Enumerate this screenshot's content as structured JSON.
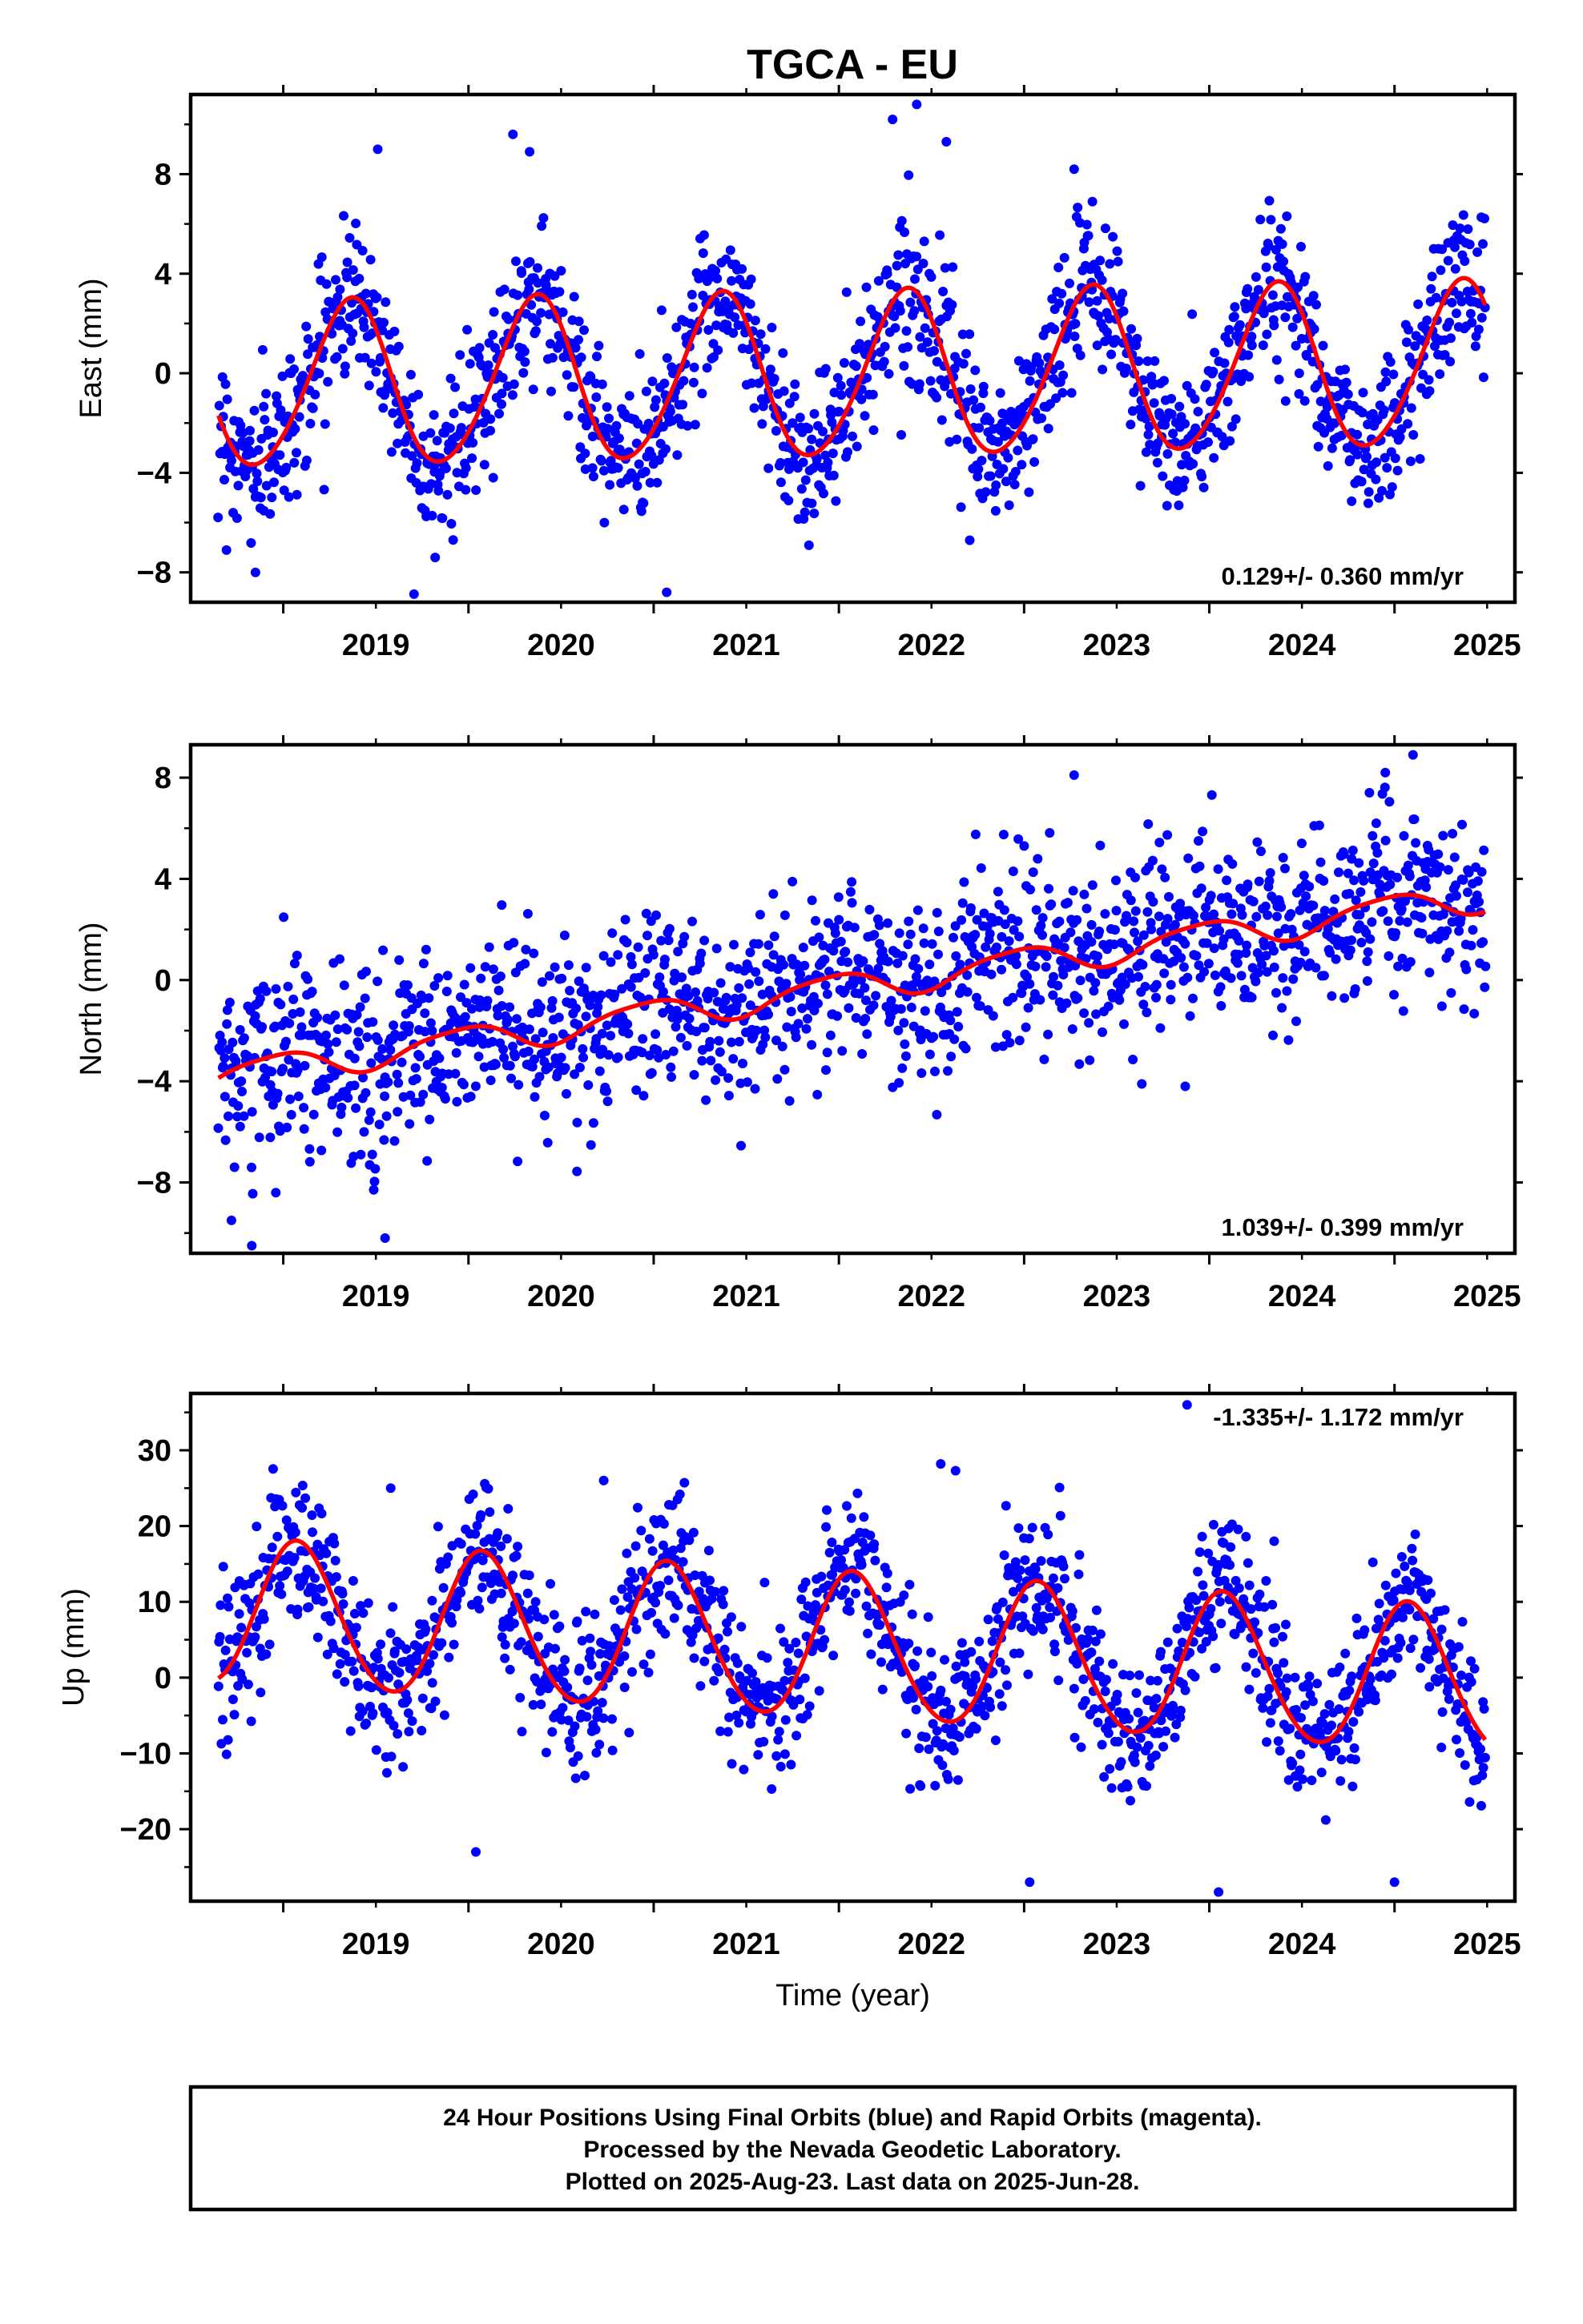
{
  "title": "TGCA - EU",
  "footer": [
    "24 Hour Positions Using Final Orbits (blue) and Rapid Orbits (magenta).",
    "Processed by the Nevada Geodetic Laboratory.",
    "Plotted on 2025-Aug-23. Last data on 2025-Jun-28."
  ],
  "colors": {
    "points": "#0000ff",
    "model": "#ff0000",
    "axes": "#000000"
  },
  "chart_data": [
    {
      "type": "scatter",
      "ylabel": "East (mm)",
      "ylim": [
        -9.2,
        11.2
      ],
      "yticks": [
        -8,
        -4,
        0,
        4,
        8
      ],
      "xlim": [
        2018.5,
        2025.65
      ],
      "xticks": [
        2019,
        2020,
        2021,
        2022,
        2023,
        2024,
        2025
      ],
      "xlabel": "",
      "rate_label": "0.129+/- 0.360 mm/yr",
      "rate_position": "bottom-right",
      "data_start": 2018.65,
      "data_end": 2025.49,
      "model": {
        "offset": -0.15,
        "rate": 0.129,
        "annual_sin": 2.55,
        "annual_cos": -2.1,
        "semiannual_sin": -0.25,
        "semiannual_cos": 0.15
      },
      "scatter_sd": 1.5,
      "outliers": [
        {
          "x": 2022.42,
          "y": 10.8
        },
        {
          "x": 2020.24,
          "y": 9.6
        },
        {
          "x": 2022.29,
          "y": 10.2
        },
        {
          "x": 2019.51,
          "y": 9.0
        },
        {
          "x": 2021.07,
          "y": -8.8
        },
        {
          "x": 2018.85,
          "y": -8.0
        },
        {
          "x": 2019.82,
          "y": -7.4
        },
        {
          "x": 2020.33,
          "y": 8.9
        },
        {
          "x": 2022.58,
          "y": 9.3
        },
        {
          "x": 2023.27,
          "y": 8.2
        }
      ]
    },
    {
      "type": "scatter",
      "ylabel": "North (mm)",
      "ylim": [
        -10.8,
        9.3
      ],
      "yticks": [
        -8,
        -4,
        0,
        4,
        8
      ],
      "xlim": [
        2018.5,
        2025.65
      ],
      "xticks": [
        2019,
        2020,
        2021,
        2022,
        2023,
        2024,
        2025
      ],
      "xlabel": "",
      "rate_label": "1.039+/- 0.399 mm/yr",
      "rate_position": "bottom-right",
      "data_start": 2018.65,
      "data_end": 2025.49,
      "model": {
        "offset": -0.3,
        "rate": 1.039,
        "annual_sin": -0.15,
        "annual_cos": 0.55,
        "semiannual_sin": 0.1,
        "semiannual_cos": -0.05
      },
      "scatter_sd": 1.8,
      "outliers": [
        {
          "x": 2018.83,
          "y": -10.5
        },
        {
          "x": 2019.55,
          "y": -10.2
        },
        {
          "x": 2018.72,
          "y": -9.5
        },
        {
          "x": 2025.1,
          "y": 8.9
        },
        {
          "x": 2024.95,
          "y": 8.2
        },
        {
          "x": 2023.27,
          "y": 8.1
        },
        {
          "x": 2018.96,
          "y": -8.4
        },
        {
          "x": 2023.87,
          "y": -4.2
        }
      ]
    },
    {
      "type": "scatter",
      "ylabel": "Up (mm)",
      "ylim": [
        -29.5,
        37.5
      ],
      "yticks": [
        -20,
        -10,
        0,
        10,
        20,
        30
      ],
      "xlim": [
        2018.5,
        2025.65
      ],
      "xticks": [
        2019,
        2020,
        2021,
        2022,
        2023,
        2024,
        2025
      ],
      "xlabel": "Time (year)",
      "rate_label": "-1.335+/- 1.172 mm/yr",
      "rate_position": "top-right",
      "data_start": 2018.65,
      "data_end": 2025.49,
      "model": {
        "offset": 4.0,
        "rate": -1.335,
        "annual_sin": 4.6,
        "annual_cos": 8.4,
        "semiannual_sin": 0.3,
        "semiannual_cos": 0.6
      },
      "scatter_sd": 5.0,
      "outliers": [
        {
          "x": 2023.88,
          "y": 36.0
        },
        {
          "x": 2022.55,
          "y": 28.2
        },
        {
          "x": 2022.63,
          "y": 27.3
        },
        {
          "x": 2020.73,
          "y": 26.0
        },
        {
          "x": 2024.05,
          "y": -28.3
        },
        {
          "x": 2023.03,
          "y": -27.0
        },
        {
          "x": 2025.0,
          "y": -27.0
        },
        {
          "x": 2020.04,
          "y": -23.0
        },
        {
          "x": 2019.58,
          "y": 25.0
        },
        {
          "x": 2024.35,
          "y": 18.0
        }
      ]
    }
  ]
}
